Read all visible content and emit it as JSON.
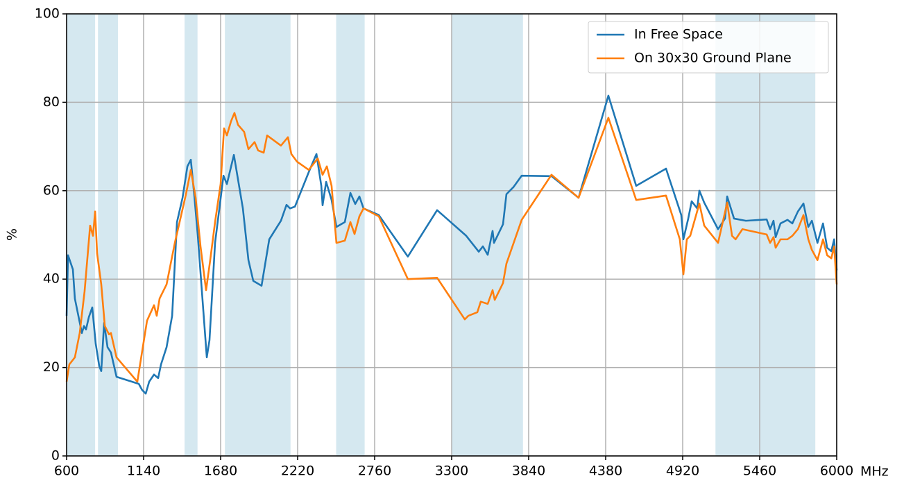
{
  "chart_data": {
    "type": "line",
    "ylabel": "%",
    "xlabel": "MHz",
    "xlim": [
      600,
      6000
    ],
    "ylim": [
      0,
      100
    ],
    "xticks": [
      600,
      1140,
      1680,
      2220,
      2760,
      3300,
      3840,
      4380,
      4920,
      5460,
      6000
    ],
    "yticks": [
      0,
      20,
      40,
      60,
      80,
      100
    ],
    "grid": true,
    "legend": "upper right",
    "bands": [
      [
        600,
        800
      ],
      [
        820,
        960
      ],
      [
        1427,
        1518
      ],
      [
        1710,
        2170
      ],
      [
        2490,
        2690
      ],
      [
        3300,
        3800
      ],
      [
        5150,
        5850
      ]
    ],
    "band_color": "#d5e8f0",
    "series": [
      {
        "name": "In Free Space",
        "color": "#1f77b4",
        "x": [
          600,
          610,
          644,
          658,
          707,
          722,
          736,
          756,
          780,
          804,
          829,
          843,
          863,
          887,
          911,
          950,
          1106,
          1130,
          1155,
          1179,
          1213,
          1242,
          1262,
          1301,
          1340,
          1374,
          1413,
          1447,
          1471,
          1496,
          1520,
          1554,
          1583,
          1602,
          1641,
          1700,
          1724,
          1773,
          1836,
          1875,
          1909,
          1967,
          2021,
          2103,
          2142,
          2167,
          2201,
          2298,
          2352,
          2386,
          2395,
          2420,
          2458,
          2492,
          2551,
          2590,
          2624,
          2653,
          2682,
          2789,
          2993,
          3198,
          3402,
          3490,
          3519,
          3553,
          3587,
          3597,
          3660,
          3684,
          3733,
          3791,
          4000,
          4190,
          4399,
          4594,
          4803,
          4910,
          4925,
          4959,
          4983,
          5022,
          5037,
          5071,
          5168,
          5217,
          5232,
          5280,
          5363,
          5509,
          5533,
          5557,
          5572,
          5606,
          5655,
          5689,
          5728,
          5767,
          5801,
          5826,
          5865,
          5904,
          5933,
          5962,
          5982,
          6000
        ],
        "values": [
          31.7,
          45.4,
          42.2,
          35.6,
          27.8,
          29.4,
          28.6,
          31.4,
          33.6,
          25.4,
          20.3,
          19.2,
          30.1,
          24.6,
          23.4,
          17.9,
          16.3,
          14.9,
          14.1,
          16.8,
          18.4,
          17.6,
          20.7,
          24.6,
          31.7,
          52.9,
          58.4,
          65.5,
          67.0,
          58.7,
          49.8,
          34.9,
          22.3,
          26.2,
          48.2,
          63.4,
          61.5,
          68.1,
          56.0,
          44.3,
          39.6,
          38.5,
          49.0,
          53.2,
          56.8,
          56.0,
          56.4,
          64.2,
          68.3,
          61.1,
          56.7,
          62.0,
          57.9,
          51.8,
          52.9,
          59.5,
          57.0,
          58.7,
          56.0,
          54.5,
          45.1,
          55.6,
          49.8,
          46.2,
          47.4,
          45.5,
          50.9,
          48.2,
          52.4,
          59.2,
          60.8,
          63.4,
          63.3,
          58.4,
          81.5,
          61.1,
          65.0,
          54.5,
          49.0,
          53.7,
          57.6,
          56.0,
          60.0,
          57.3,
          51.3,
          53.7,
          58.7,
          53.7,
          53.2,
          53.5,
          51.3,
          53.2,
          49.5,
          52.6,
          53.4,
          52.6,
          55.3,
          57.1,
          51.8,
          53.2,
          48.2,
          52.6,
          47.1,
          46.3,
          49.0,
          42.0
        ]
      },
      {
        "name": "On 30x30 Ground Plane",
        "color": "#ff7f0e",
        "x": [
          600,
          619,
          658,
          692,
          726,
          765,
          785,
          800,
          814,
          843,
          868,
          897,
          911,
          950,
          1096,
          1164,
          1213,
          1232,
          1252,
          1301,
          1359,
          1437,
          1471,
          1505,
          1539,
          1578,
          1607,
          1641,
          1680,
          1704,
          1724,
          1753,
          1777,
          1802,
          1845,
          1875,
          1918,
          1943,
          1982,
          2006,
          2103,
          2152,
          2176,
          2215,
          2298,
          2361,
          2395,
          2425,
          2458,
          2492,
          2551,
          2590,
          2619,
          2653,
          2682,
          2789,
          2993,
          3198,
          3392,
          3417,
          3480,
          3504,
          3553,
          3587,
          3602,
          3660,
          3684,
          3791,
          4000,
          4190,
          4399,
          4594,
          4803,
          4900,
          4925,
          4949,
          4973,
          5037,
          5071,
          5168,
          5232,
          5266,
          5291,
          5339,
          5509,
          5533,
          5557,
          5572,
          5606,
          5655,
          5689,
          5728,
          5767,
          5801,
          5826,
          5865,
          5904,
          5933,
          5962,
          5982,
          6000
        ],
        "values": [
          16.8,
          20.7,
          22.3,
          27.8,
          37.2,
          52.1,
          49.8,
          55.3,
          45.8,
          38.8,
          29.4,
          27.5,
          27.8,
          22.3,
          16.8,
          30.6,
          34.1,
          31.7,
          35.6,
          38.8,
          48.2,
          59.2,
          64.7,
          58.4,
          47.4,
          37.5,
          44.3,
          52.9,
          61.5,
          74.1,
          72.5,
          75.7,
          77.6,
          74.9,
          73.3,
          69.4,
          71.0,
          69.1,
          68.6,
          72.5,
          70.2,
          72.1,
          68.3,
          66.6,
          64.7,
          67.3,
          63.6,
          65.5,
          61.1,
          48.2,
          48.7,
          52.9,
          50.2,
          54.2,
          56.0,
          54.2,
          40.0,
          40.3,
          30.9,
          31.7,
          32.5,
          34.9,
          34.4,
          37.5,
          35.3,
          39.1,
          43.5,
          53.4,
          63.6,
          58.4,
          76.5,
          57.9,
          58.9,
          49.0,
          41.1,
          49.0,
          49.8,
          57.1,
          52.1,
          48.2,
          57.3,
          49.8,
          49.0,
          51.3,
          50.1,
          48.2,
          49.5,
          47.1,
          49.0,
          49.0,
          49.8,
          51.3,
          54.5,
          49.0,
          46.6,
          44.3,
          49.0,
          45.4,
          44.7,
          47.4,
          38.8
        ]
      }
    ]
  }
}
